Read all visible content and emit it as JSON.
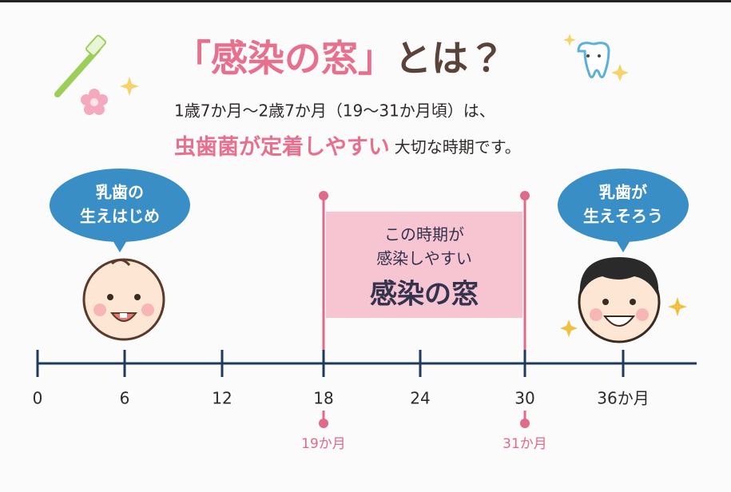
{
  "header": {
    "title_highlight": "「感染の窓」",
    "title_rest": "とは？",
    "line1": "1歳7か月～2歳7か月（19～31か月頃）は、",
    "line2_highlight": "虫歯菌が定着しやすい",
    "line2_rest": "大切な時期です。"
  },
  "bubbles": [
    {
      "lines": [
        "乳歯の",
        "生えはじめ"
      ]
    },
    {
      "lines": [
        "乳歯が",
        "生えそろう"
      ]
    }
  ],
  "window": {
    "lines": [
      "この時期が",
      "感染しやすい"
    ],
    "label": "感染の窓"
  },
  "timeline": {
    "ticks": [
      "0",
      "6",
      "12",
      "18",
      "24",
      "30",
      "36か月"
    ],
    "markers": [
      "19か月",
      "31か月"
    ]
  }
}
